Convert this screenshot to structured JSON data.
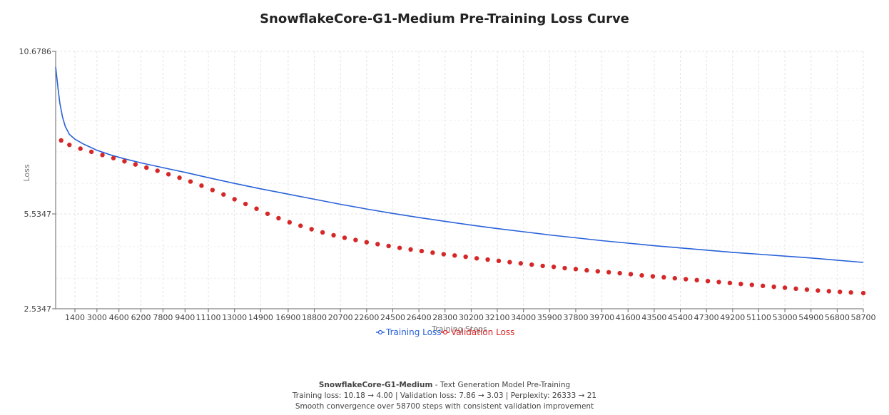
{
  "chart_data": {
    "type": "line",
    "title": "SnowflakeCore-G1-Medium Pre-Training Loss Curve",
    "xlabel": "Training Steps",
    "ylabel": "Loss",
    "x_tick_labels": [
      "1400",
      "3000",
      "4600",
      "6200",
      "7800",
      "9400",
      "11100",
      "13000",
      "14900",
      "16900",
      "18800",
      "20700",
      "22600",
      "24500",
      "26400",
      "28300",
      "30200",
      "32100",
      "34000",
      "35900",
      "37800",
      "39700",
      "41600",
      "43500",
      "45400",
      "47300",
      "49200",
      "51100",
      "53000",
      "54900",
      "56800",
      "58700"
    ],
    "y_tick_labels": [
      "10.6786",
      "5.5347",
      "2.5347"
    ],
    "ylim": [
      2.5347,
      10.6786
    ],
    "xlim": [
      0,
      58700
    ],
    "grid": true,
    "legend_position": "bottom-center",
    "series": [
      {
        "name": "Training Loss",
        "color": "#2962d9",
        "style": "line",
        "x": [
          0,
          100,
          200,
          300,
          500,
          700,
          1000,
          1400,
          2000,
          3000,
          4000,
          5000,
          6200,
          7800,
          9400,
          11100,
          13000,
          14900,
          16900,
          18800,
          20700,
          22600,
          24500,
          26400,
          28300,
          30200,
          32100,
          34000,
          35900,
          37800,
          39700,
          41600,
          43500,
          45400,
          47300,
          49200,
          51100,
          53000,
          54900,
          56800,
          58700
        ],
        "y": [
          10.18,
          9.8,
          9.4,
          9.05,
          8.6,
          8.3,
          8.05,
          7.9,
          7.75,
          7.55,
          7.4,
          7.28,
          7.15,
          7.0,
          6.85,
          6.68,
          6.5,
          6.33,
          6.16,
          6.0,
          5.84,
          5.69,
          5.55,
          5.42,
          5.3,
          5.18,
          5.07,
          4.97,
          4.87,
          4.78,
          4.69,
          4.61,
          4.53,
          4.46,
          4.39,
          4.32,
          4.26,
          4.2,
          4.14,
          4.07,
          4.0
        ]
      },
      {
        "name": "Validation Loss",
        "color": "#d62728",
        "style": "dots",
        "x": [
          400,
          1000,
          1800,
          2600,
          3400,
          4200,
          5000,
          5800,
          6600,
          7400,
          8200,
          9000,
          9800,
          10600,
          11400,
          12200,
          13000,
          13800,
          14600,
          15400,
          16200,
          17000,
          17800,
          18600,
          19400,
          20200,
          21000,
          21800,
          22600,
          23400,
          24200,
          25000,
          25800,
          26600,
          27400,
          28200,
          29000,
          29800,
          30600,
          31400,
          32200,
          33000,
          33800,
          34600,
          35400,
          36200,
          37000,
          37800,
          38600,
          39400,
          40200,
          41000,
          41800,
          42600,
          43400,
          44200,
          45000,
          45800,
          46600,
          47400,
          48200,
          49000,
          49800,
          50600,
          51400,
          52200,
          53000,
          53800,
          54600,
          55400,
          56200,
          57000,
          57800,
          58700
        ],
        "y": [
          7.86,
          7.72,
          7.6,
          7.5,
          7.4,
          7.3,
          7.2,
          7.1,
          7.0,
          6.9,
          6.79,
          6.68,
          6.56,
          6.43,
          6.29,
          6.15,
          6.0,
          5.85,
          5.7,
          5.54,
          5.4,
          5.27,
          5.16,
          5.05,
          4.95,
          4.86,
          4.78,
          4.71,
          4.64,
          4.58,
          4.52,
          4.46,
          4.41,
          4.36,
          4.31,
          4.26,
          4.22,
          4.18,
          4.13,
          4.09,
          4.05,
          4.01,
          3.97,
          3.93,
          3.89,
          3.86,
          3.82,
          3.79,
          3.75,
          3.72,
          3.69,
          3.66,
          3.63,
          3.59,
          3.56,
          3.53,
          3.5,
          3.47,
          3.44,
          3.41,
          3.38,
          3.35,
          3.32,
          3.29,
          3.26,
          3.23,
          3.2,
          3.17,
          3.14,
          3.11,
          3.09,
          3.07,
          3.05,
          3.03
        ]
      }
    ]
  },
  "footer": {
    "model_name": "SnowflakeCore-G1-Medium",
    "subtitle": " - Text Generation Model Pre-Training",
    "stats_line": "Training loss: 10.18 → 4.00 | Validation loss: 7.86 → 3.03 | Perplexity: 26333 → 21",
    "summary_line": "Smooth convergence over 58700 steps with consistent validation improvement"
  }
}
